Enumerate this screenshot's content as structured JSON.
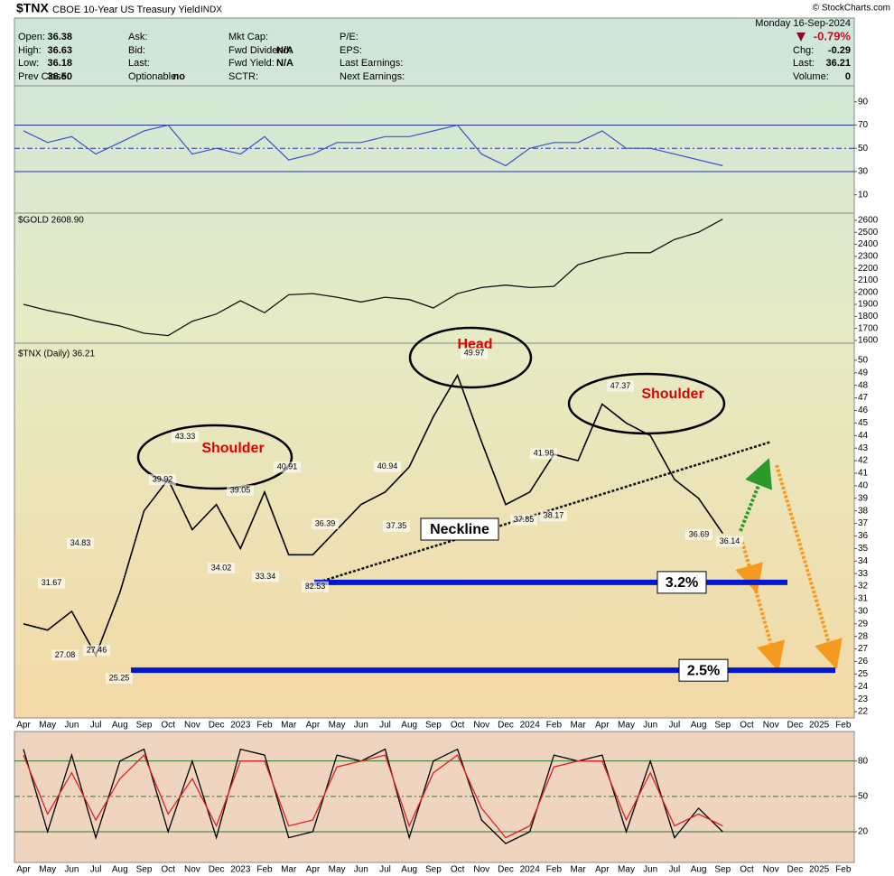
{
  "header": {
    "symbol": "$TNX",
    "name": "CBOE 10-Year US Treasury Yield",
    "exchange": "INDX",
    "copyright": "© StockCharts.com",
    "date": "Monday 16-Sep-2024",
    "change_pct": "-0.79%",
    "columns": [
      [
        {
          "label": "Open:",
          "value": "36.38"
        },
        {
          "label": "High:",
          "value": "36.63"
        },
        {
          "label": "Low:",
          "value": "36.18"
        },
        {
          "label": "Prev Close:",
          "value": "36.50"
        }
      ],
      [
        {
          "label": "Ask:"
        },
        {
          "label": "Bid:"
        },
        {
          "label": "Last:"
        },
        {
          "label": "Optionable:",
          "value": "no"
        }
      ],
      [
        {
          "label": "Mkt Cap:"
        },
        {
          "label": "Fwd Dividend:",
          "value": "N/A"
        },
        {
          "label": "Fwd Yield:",
          "value": "N/A"
        },
        {
          "label": "SCTR:"
        }
      ],
      [
        {
          "label": "P/E:"
        },
        {
          "label": "EPS:"
        },
        {
          "label": "Last Earnings:"
        },
        {
          "label": "Next Earnings:"
        }
      ]
    ],
    "right": [
      {
        "label": "Chg:",
        "value": "-0.29"
      },
      {
        "label": "Last:",
        "value": "36.21"
      },
      {
        "label": "Volume:",
        "value": "0"
      }
    ]
  },
  "chart_data": [
    {
      "type": "line",
      "color": "#3a4fd0",
      "values": [
        65,
        55,
        60,
        45,
        55,
        65,
        70,
        45,
        50,
        45,
        60,
        40,
        45,
        55,
        55,
        60,
        60,
        65,
        70,
        45,
        35,
        50,
        55,
        55,
        65,
        50,
        50,
        45,
        40,
        35,
        null,
        null,
        null,
        null,
        null
      ],
      "ylim": [
        -5,
        103
      ],
      "yticks": [
        10,
        30,
        50,
        70,
        90
      ],
      "hlines": [
        30,
        50,
        70
      ]
    },
    {
      "type": "line",
      "series": [
        {
          "name": "$GOLD 2608.90",
          "color": "#111111",
          "values": [
            1900,
            1850,
            1810,
            1760,
            1720,
            1660,
            1640,
            1760,
            1820,
            1930,
            1830,
            1980,
            1990,
            1960,
            1920,
            1960,
            1940,
            1870,
            1990,
            2040,
            2060,
            2040,
            2050,
            2230,
            2290,
            2330,
            2330,
            2440,
            2500,
            2608.9,
            null,
            null,
            null,
            null,
            null
          ]
        }
      ],
      "ylim": [
        1577,
        2652
      ],
      "yticks": [
        1600,
        1700,
        1800,
        1900,
        2000,
        2100,
        2200,
        2300,
        2400,
        2500,
        2600
      ]
    },
    {
      "type": "line",
      "categories": [
        "Apr",
        "May",
        "Jun",
        "Jul",
        "Aug",
        "Sep",
        "Oct",
        "Nov",
        "Dec",
        "2023",
        "Feb",
        "Mar",
        "Apr",
        "May",
        "Jun",
        "Jul",
        "Aug",
        "Sep",
        "Oct",
        "Nov",
        "Dec",
        "2024",
        "Feb",
        "Mar",
        "Apr",
        "May",
        "Jun",
        "Jul",
        "Aug",
        "Sep",
        "Oct",
        "Nov",
        "Dec",
        "2025",
        "Feb"
      ],
      "series": [
        {
          "name": "$TNX (Daily) 36.21",
          "color": "#000000",
          "values": [
            29,
            28.5,
            30,
            26.5,
            31.5,
            38,
            40.5,
            36.5,
            38.5,
            35,
            39.5,
            34.5,
            34.5,
            36.5,
            38.5,
            39.5,
            41.5,
            45.5,
            48.8,
            43.5,
            38.5,
            39.5,
            42.5,
            42,
            46.5,
            45,
            44,
            40.5,
            39,
            36.21,
            null,
            null,
            null,
            null,
            null
          ]
        }
      ],
      "ylim": [
        21.5,
        51
      ],
      "yticks": [
        22,
        23,
        24,
        25,
        26,
        27,
        28,
        29,
        30,
        31,
        32,
        33,
        34,
        35,
        36,
        37,
        38,
        39,
        40,
        41,
        42,
        43,
        44,
        45,
        46,
        47,
        48,
        49,
        50
      ],
      "price_labels": [
        31.67,
        34.83,
        27.08,
        27.46,
        25.25,
        39.92,
        43.33,
        34.02,
        39.05,
        33.34,
        40.91,
        32.53,
        36.39,
        40.94,
        37.35,
        49.97,
        41.98,
        37.85,
        38.17,
        47.37,
        36.69,
        36.14
      ],
      "annotations": [
        "Shoulder",
        "Head",
        "Shoulder"
      ],
      "neckline": {
        "label": "Neckline",
        "start": 32,
        "end": 43.5
      },
      "levels": [
        {
          "label": "3.2%",
          "value": 32.3
        },
        {
          "label": "2.5%",
          "value": 25.3
        }
      ]
    },
    {
      "type": "line",
      "categories": [
        "Apr",
        "May",
        "Jun",
        "Jul",
        "Aug",
        "Sep",
        "Oct",
        "Nov",
        "Dec",
        "2023",
        "Feb",
        "Mar",
        "Apr",
        "May",
        "Jun",
        "Jul",
        "Aug",
        "Sep",
        "Oct",
        "Nov",
        "Dec",
        "2024",
        "Feb",
        "Mar",
        "Apr",
        "May",
        "Jun",
        "Jul",
        "Aug",
        "Sep",
        "Oct",
        "Nov",
        "Dec",
        "2025",
        "Feb"
      ],
      "series": [
        {
          "color": "#000000",
          "values": [
            90,
            20,
            85,
            15,
            80,
            90,
            20,
            80,
            15,
            90,
            85,
            15,
            20,
            85,
            80,
            90,
            15,
            80,
            90,
            30,
            10,
            20,
            85,
            80,
            85,
            20,
            80,
            15,
            40,
            20,
            null,
            null,
            null,
            null,
            null
          ]
        },
        {
          "color": "#e02020",
          "values": [
            85,
            35,
            70,
            30,
            65,
            85,
            35,
            65,
            25,
            80,
            80,
            25,
            30,
            75,
            80,
            85,
            25,
            70,
            85,
            40,
            15,
            25,
            75,
            80,
            80,
            30,
            70,
            25,
            35,
            25,
            null,
            null,
            null,
            null,
            null
          ]
        }
      ],
      "ylim": [
        -6,
        105
      ],
      "yticks": [
        20,
        50,
        80
      ],
      "hlines": [
        20,
        50,
        80
      ]
    }
  ]
}
